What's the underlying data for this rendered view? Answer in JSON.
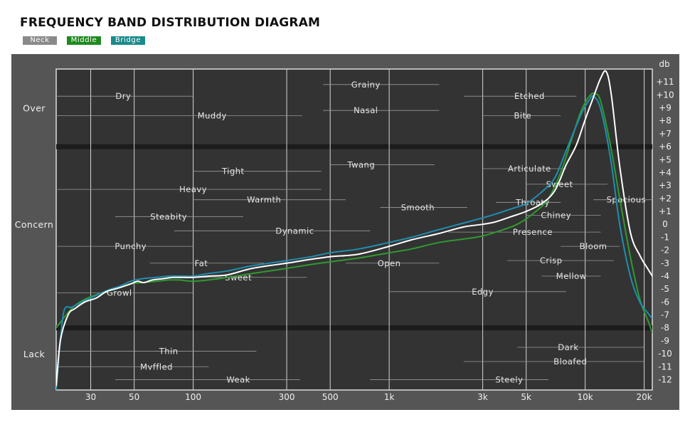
{
  "title": "FREQUENCY BAND DISTRIBUTION DIAGRAM",
  "legend": [
    {
      "label": "Neck",
      "color": "#8a8a8a"
    },
    {
      "label": "Middle",
      "color": "#1e8a1e"
    },
    {
      "label": "Bridge",
      "color": "#1a8a8a"
    }
  ],
  "chart_data": {
    "type": "line",
    "title": "FREQUENCY BAND DISTRIBUTION DIAGRAM",
    "xscale": "log",
    "xlim": [
      20,
      22000
    ],
    "ylim": [
      -12.8,
      12
    ],
    "ylabel": "db",
    "xticks": [
      {
        "v": 30,
        "label": "30"
      },
      {
        "v": 50,
        "label": "50"
      },
      {
        "v": 100,
        "label": "100"
      },
      {
        "v": 300,
        "label": "300"
      },
      {
        "v": 500,
        "label": "500"
      },
      {
        "v": 1000,
        "label": "1k"
      },
      {
        "v": 3000,
        "label": "3k"
      },
      {
        "v": 5000,
        "label": "5k"
      },
      {
        "v": 10000,
        "label": "10k"
      },
      {
        "v": 20000,
        "label": "20k"
      }
    ],
    "yticks": [
      11,
      10,
      9,
      8,
      7,
      6,
      5,
      4,
      3,
      2,
      1,
      0,
      -1,
      -2,
      -3,
      -4,
      -5,
      -6,
      -7,
      -8,
      -9,
      -10,
      -11,
      -12
    ],
    "bands": [
      {
        "label": "Over",
        "y": 9
      },
      {
        "label": "Concern",
        "y": 0
      },
      {
        "label": "Lack",
        "y": -10
      }
    ],
    "band_lines": [
      6,
      -8
    ],
    "series": [
      {
        "name": "Middle",
        "color": "#2f9a2f",
        "points": [
          [
            20,
            -8
          ],
          [
            24,
            -6.5
          ],
          [
            28,
            -5.8
          ],
          [
            34,
            -5.3
          ],
          [
            40,
            -5
          ],
          [
            48,
            -4.6
          ],
          [
            55,
            -4.5
          ],
          [
            65,
            -4.4
          ],
          [
            75,
            -4.3
          ],
          [
            85,
            -4.3
          ],
          [
            100,
            -4.4
          ],
          [
            120,
            -4.3
          ],
          [
            150,
            -4.1
          ],
          [
            200,
            -3.8
          ],
          [
            300,
            -3.4
          ],
          [
            400,
            -3.1
          ],
          [
            500,
            -2.9
          ],
          [
            700,
            -2.6
          ],
          [
            1000,
            -2.2
          ],
          [
            1300,
            -1.9
          ],
          [
            1800,
            -1.4
          ],
          [
            2500,
            -1.1
          ],
          [
            3000,
            -0.9
          ],
          [
            3500,
            -0.6
          ],
          [
            4500,
            0
          ],
          [
            5500,
            0.9
          ],
          [
            6500,
            2
          ],
          [
            7500,
            4
          ],
          [
            8500,
            6.5
          ],
          [
            9500,
            8.7
          ],
          [
            10500,
            9.9
          ],
          [
            11200,
            10.1
          ],
          [
            12000,
            9.5
          ],
          [
            13500,
            6
          ],
          [
            15000,
            2
          ],
          [
            17000,
            -2.5
          ],
          [
            19000,
            -5.8
          ],
          [
            21000,
            -7.5
          ],
          [
            22000,
            -8.4
          ]
        ]
      },
      {
        "name": "Bridge",
        "color": "#1f8eb0",
        "points": [
          [
            20,
            -12.8
          ],
          [
            21,
            -9
          ],
          [
            22,
            -6.6
          ],
          [
            24,
            -6.4
          ],
          [
            27,
            -6
          ],
          [
            30,
            -5.7
          ],
          [
            33,
            -5.4
          ],
          [
            38,
            -5
          ],
          [
            42,
            -4.8
          ],
          [
            48,
            -4.4
          ],
          [
            55,
            -4.2
          ],
          [
            65,
            -4.1
          ],
          [
            75,
            -4
          ],
          [
            90,
            -4
          ],
          [
            100,
            -4
          ],
          [
            120,
            -3.8
          ],
          [
            150,
            -3.6
          ],
          [
            200,
            -3.2
          ],
          [
            300,
            -2.8
          ],
          [
            400,
            -2.5
          ],
          [
            500,
            -2.2
          ],
          [
            700,
            -1.9
          ],
          [
            1000,
            -1.4
          ],
          [
            1300,
            -1
          ],
          [
            1800,
            -0.4
          ],
          [
            2400,
            0.1
          ],
          [
            3000,
            0.5
          ],
          [
            3500,
            0.8
          ],
          [
            4200,
            1.2
          ],
          [
            5000,
            1.6
          ],
          [
            6000,
            2.5
          ],
          [
            7000,
            3.6
          ],
          [
            8000,
            5.7
          ],
          [
            9000,
            7.6
          ],
          [
            9800,
            8.9
          ],
          [
            10500,
            9.6
          ],
          [
            11000,
            9.9
          ],
          [
            12000,
            8.9
          ],
          [
            13500,
            5
          ],
          [
            15000,
            0
          ],
          [
            17000,
            -4
          ],
          [
            19000,
            -6
          ],
          [
            21000,
            -6.9
          ],
          [
            22000,
            -7.3
          ]
        ]
      },
      {
        "name": "Neck",
        "color": "#ffffff",
        "points": [
          [
            20,
            -12.5
          ],
          [
            21,
            -9
          ],
          [
            23,
            -7
          ],
          [
            25,
            -6.5
          ],
          [
            28,
            -6
          ],
          [
            32,
            -5.7
          ],
          [
            36,
            -5.2
          ],
          [
            42,
            -4.9
          ],
          [
            48,
            -4.6
          ],
          [
            52,
            -4.4
          ],
          [
            56,
            -4.5
          ],
          [
            62,
            -4.3
          ],
          [
            70,
            -4.2
          ],
          [
            80,
            -4.1
          ],
          [
            100,
            -4.1
          ],
          [
            120,
            -4
          ],
          [
            150,
            -3.9
          ],
          [
            200,
            -3.4
          ],
          [
            300,
            -3
          ],
          [
            400,
            -2.7
          ],
          [
            500,
            -2.5
          ],
          [
            700,
            -2.3
          ],
          [
            1000,
            -1.7
          ],
          [
            1300,
            -1.2
          ],
          [
            1800,
            -0.7
          ],
          [
            2400,
            -0.2
          ],
          [
            3000,
            0
          ],
          [
            3500,
            0.2
          ],
          [
            4200,
            0.6
          ],
          [
            5000,
            1
          ],
          [
            6000,
            1.6
          ],
          [
            7000,
            2.6
          ],
          [
            8000,
            4.6
          ],
          [
            9000,
            6.1
          ],
          [
            10000,
            8.1
          ],
          [
            11000,
            9.8
          ],
          [
            12000,
            11.3
          ],
          [
            12800,
            11.8
          ],
          [
            13600,
            10
          ],
          [
            15000,
            4.5
          ],
          [
            17000,
            -0.6
          ],
          [
            19000,
            -2.4
          ],
          [
            21000,
            -3.5
          ],
          [
            22000,
            -4
          ]
        ]
      }
    ],
    "annotations": [
      {
        "text": "Dry",
        "f": 44,
        "db": 9.9,
        "lf": [
          20,
          100
        ]
      },
      {
        "text": "Muddy",
        "f": 125,
        "db": 8.4,
        "lf": [
          20,
          360
        ]
      },
      {
        "text": "Grainy",
        "f": 760,
        "db": 10.8,
        "lf": [
          460,
          1800
        ]
      },
      {
        "text": "Nasal",
        "f": 760,
        "db": 8.8,
        "lf": [
          460,
          1800
        ]
      },
      {
        "text": "Etched",
        "f": 5200,
        "db": 9.9,
        "lf": [
          2400,
          9000
        ]
      },
      {
        "text": "Bite",
        "f": 4800,
        "db": 8.4,
        "lf": [
          3000,
          7500
        ]
      },
      {
        "text": "Tight",
        "f": 160,
        "db": 4.1,
        "lf": [
          100,
          450
        ]
      },
      {
        "text": "Twang",
        "f": 720,
        "db": 4.6,
        "lf": [
          500,
          1700
        ]
      },
      {
        "text": "Articulate",
        "f": 5200,
        "db": 4.3,
        "lf": [
          3000,
          8000
        ]
      },
      {
        "text": "Heavy",
        "f": 100,
        "db": 2.7,
        "lf": [
          20,
          450
        ]
      },
      {
        "text": "Sweet",
        "f": 7400,
        "db": 3.1,
        "lf": [
          5000,
          13000
        ]
      },
      {
        "text": "Warmth",
        "f": 230,
        "db": 1.9,
        "lf": [
          100,
          600
        ]
      },
      {
        "text": "Smooth",
        "f": 1400,
        "db": 1.3,
        "lf": [
          900,
          2500
        ]
      },
      {
        "text": "Throaty",
        "f": 5400,
        "db": 1.7,
        "lf": [
          3500,
          7500
        ]
      },
      {
        "text": "Spacious",
        "f": 16200,
        "db": 1.9,
        "lf": [
          11000,
          22000
        ]
      },
      {
        "text": "Steabity",
        "f": 75,
        "db": 0.6,
        "lf": [
          40,
          180
        ]
      },
      {
        "text": "Chiney",
        "f": 7100,
        "db": 0.7,
        "lf": [
          5000,
          12000
        ]
      },
      {
        "text": "Dynamic",
        "f": 330,
        "db": -0.5,
        "lf": [
          80,
          800
        ]
      },
      {
        "text": "Presence",
        "f": 5400,
        "db": -0.6,
        "lf": [
          2000,
          12000
        ]
      },
      {
        "text": "Punchy",
        "f": 48,
        "db": -1.7,
        "lf": [
          20,
          100
        ]
      },
      {
        "text": "Bloom",
        "f": 11000,
        "db": -1.7,
        "lf": [
          7500,
          15000
        ]
      },
      {
        "text": "Fat",
        "f": 110,
        "db": -3,
        "lf": [
          60,
          230
        ]
      },
      {
        "text": "Open",
        "f": 1000,
        "db": -3,
        "lf": [
          600,
          1800
        ]
      },
      {
        "text": "Crisp",
        "f": 6700,
        "db": -2.8,
        "lf": [
          4000,
          14000
        ]
      },
      {
        "text": "Sweet",
        "f": 170,
        "db": -4.1,
        "lf": [
          100,
          380
        ]
      },
      {
        "text": "Mellow",
        "f": 8500,
        "db": -4,
        "lf": [
          6000,
          12000
        ]
      },
      {
        "text": "Growl",
        "f": 42,
        "db": -5.3,
        "lf": [
          20,
          100
        ]
      },
      {
        "text": "Edgy",
        "f": 3000,
        "db": -5.2,
        "lf": [
          1000,
          8000
        ]
      },
      {
        "text": "Thin",
        "f": 75,
        "db": -9.8,
        "lf": [
          20,
          210
        ]
      },
      {
        "text": "Mvffled",
        "f": 65,
        "db": -11,
        "lf": [
          20,
          120
        ]
      },
      {
        "text": "Dark",
        "f": 8200,
        "db": -9.5,
        "lf": [
          4500,
          20000
        ]
      },
      {
        "text": "Bloafed",
        "f": 8400,
        "db": -10.6,
        "lf": [
          2400,
          20000
        ]
      },
      {
        "text": "Weak",
        "f": 170,
        "db": -12,
        "lf": [
          40,
          350
        ]
      },
      {
        "text": "Steely",
        "f": 4100,
        "db": -12,
        "lf": [
          800,
          6500
        ]
      }
    ]
  }
}
